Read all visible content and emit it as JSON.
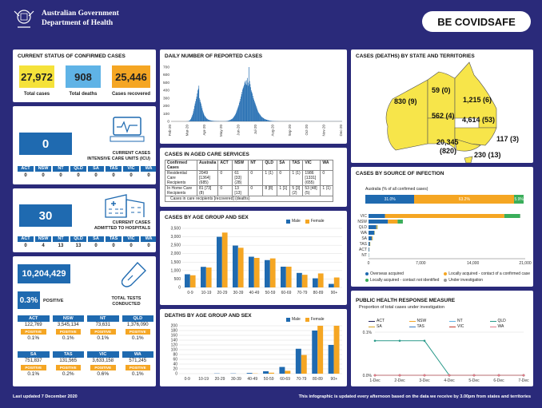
{
  "header": {
    "org_line1": "Australian Government",
    "org_line2": "Department of Health",
    "brand_be": "BE COVID",
    "brand_safe": "SAFE"
  },
  "status": {
    "title": "CURRENT STATUS OF CONFIRMED CASES",
    "total_cases": "27,972",
    "total_cases_label": "Total cases",
    "total_deaths": "908",
    "total_deaths_label": "Total deaths",
    "recovered": "25,446",
    "recovered_label": "Cases recovered"
  },
  "icu": {
    "value": "0",
    "label1": "CURRENT CASES",
    "label2": "INTENSIVE CARE UNITS (ICU)",
    "states": [
      "ACT",
      "NSW",
      "NT",
      "QLD",
      "SA",
      "TAS",
      "VIC",
      "WA"
    ],
    "values": [
      "0",
      "0",
      "0",
      "0",
      "0",
      "0",
      "0",
      "0"
    ]
  },
  "hospital": {
    "value": "30",
    "label1": "CURRENT CASES",
    "label2": "ADMITTED TO HOSPITALS",
    "states": [
      "ACT",
      "NSW",
      "NT",
      "QLD",
      "SA",
      "TAS",
      "VIC",
      "WA"
    ],
    "values": [
      "0",
      "4",
      "13",
      "13",
      "0",
      "0",
      "0",
      "0"
    ]
  },
  "tests": {
    "value": "10,204,429",
    "positive_rate": "0.3%",
    "positive_label": "POSITIVE",
    "label1": "TOTAL TESTS",
    "label2": "CONDUCTED",
    "positive_tag": "POSITIVE",
    "rows": [
      {
        "states": [
          "ACT",
          "NSW",
          "NT",
          "QLD"
        ],
        "values": [
          "122,769",
          "3,545,134",
          "73,631",
          "1,376,090"
        ],
        "rates": [
          "0.1%",
          "0.1%",
          "0.1%",
          "0.1%"
        ]
      },
      {
        "states": [
          "SA",
          "TAS",
          "VIC",
          "WA"
        ],
        "values": [
          "751,837",
          "131,565",
          "3,633,158",
          "571,245"
        ],
        "rates": [
          "0.1%",
          "0.2%",
          "0.6%",
          "0.1%"
        ]
      }
    ]
  },
  "daily": {
    "title": "DAILY NUMBER OF REPORTED CASES",
    "yticks": [
      "700",
      "600",
      "500",
      "400",
      "300",
      "200",
      "100",
      "0"
    ],
    "xticks": [
      "Feb-20",
      "Mar-20",
      "Apr-20",
      "May-20",
      "Jun-20",
      "Jul-20",
      "Aug-20",
      "Sep-20",
      "Oct-20",
      "Nov-20",
      "Dec-20"
    ]
  },
  "aged": {
    "title": "CASES IN AGED CARE SERVICES",
    "headers": [
      "Confirmed Cases",
      "Australia",
      "ACT",
      "NSW",
      "NT",
      "QLD",
      "SA",
      "TAS",
      "VIC",
      "WA"
    ],
    "rows": [
      {
        "label": "Residential Care Recipients",
        "cells": [
          "2049 [1364] (685)",
          "0",
          "61 [33] (28)",
          "0",
          "1 (1)",
          "0",
          "1 (1)",
          "1986 [1331] (655)",
          "0"
        ]
      },
      {
        "label": "In Home Care Recipients",
        "cells": [
          "81 [73] (8)",
          "0",
          "13 [13]",
          "0",
          "8 [8]",
          "1 [1]",
          "5 [3] (2)",
          "53 [48] (5)",
          "1 (1)"
        ]
      }
    ],
    "note": "Cases in care recipients [recovered] (deaths)"
  },
  "age_cases": {
    "title": "CASES BY AGE GROUP AND SEX",
    "legend_male": "Male",
    "legend_female": "Female"
  },
  "age_deaths": {
    "title": "DEATHS BY AGE GROUP AND SEX",
    "legend_male": "Male",
    "legend_female": "Female"
  },
  "map": {
    "title": "CASES (DEATHS) BY STATE AND TERRITORIES",
    "wa": "830 (9)",
    "nt": "59 (0)",
    "qld": "1,215 (6)",
    "sa": "562 (4)",
    "nsw": "4,614 (53)",
    "act": "117 (3)",
    "vic1": "20,345",
    "vic2": "(820)",
    "tas": "230 (13)"
  },
  "source": {
    "title": "CASES BY SOURCE OF INFECTION",
    "subtitle": "Australia (% of all confirmed cases)",
    "pct1": "31.0%",
    "pct2": "63.2%",
    "pct3": "5.9%",
    "xticks": [
      "0",
      "7,000",
      "14,000",
      "21,000"
    ],
    "legend": [
      "Overseas acquired",
      "Locally acquired - contact of a confirmed case",
      "Locally acquired - contact not identified",
      "Under investigation"
    ]
  },
  "response": {
    "title": "PUBLIC HEALTH RESPONSE MEASURE",
    "subtitle": "Proportion of total cases under investigation",
    "legend": [
      "ACT",
      "NSW",
      "NT",
      "QLD",
      "SA",
      "TAS",
      "VIC",
      "WA"
    ],
    "y_top": "0.1%",
    "y_bottom": "0.0%",
    "xticks": [
      "1-Dec",
      "2-Dec",
      "3-Dec",
      "4-Dec",
      "5-Dec",
      "6-Dec",
      "7-Dec"
    ]
  },
  "footer": {
    "updated": "Last updated 7 December 2020",
    "note": "This infographic is updated every afternoon based on the data we receive by 3.00pm from states and territories"
  },
  "colors": {
    "navy": "#2a2a7a",
    "blue": "#1f6ab0",
    "yellow": "#f5e23a",
    "orange": "#f5a623",
    "green": "#3aae5a",
    "teal": "#2a9a8a",
    "male": "#1f6ab0",
    "female": "#f5a623",
    "mapfill": "#f7e54a"
  },
  "chart_data": [
    {
      "type": "bar",
      "title": "CASES BY AGE GROUP AND SEX",
      "categories": [
        "0-9",
        "10-19",
        "20-29",
        "30-39",
        "40-49",
        "50-59",
        "60-69",
        "70-79",
        "80-89",
        "90+"
      ],
      "series": [
        {
          "name": "Male",
          "values": [
            780,
            1220,
            3000,
            2480,
            1820,
            1620,
            1230,
            860,
            540,
            210
          ]
        },
        {
          "name": "Female",
          "values": [
            720,
            1180,
            3250,
            2350,
            1750,
            1720,
            1230,
            750,
            830,
            590
          ]
        }
      ],
      "ylim": [
        0,
        3500
      ],
      "yticks": [
        "0",
        "500",
        "1,000",
        "1,500",
        "2,000",
        "2,500",
        "3,000",
        "3,500"
      ]
    },
    {
      "type": "bar",
      "title": "DEATHS BY AGE GROUP AND SEX",
      "categories": [
        "0-9",
        "10-19",
        "20-29",
        "30-39",
        "40-49",
        "50-59",
        "60-69",
        "70-79",
        "80-89",
        "90+"
      ],
      "series": [
        {
          "name": "Male",
          "values": [
            0,
            0,
            1,
            1,
            3,
            10,
            28,
            104,
            180,
            120
          ]
        },
        {
          "name": "Female",
          "values": [
            0,
            0,
            0,
            0,
            1,
            4,
            12,
            78,
            200,
            200
          ]
        }
      ],
      "ylim": [
        0,
        200
      ],
      "yticks": [
        "0",
        "20",
        "40",
        "60",
        "80",
        "100",
        "120",
        "140",
        "160",
        "180",
        "200"
      ]
    },
    {
      "type": "bar",
      "title": "CASES BY SOURCE OF INFECTION",
      "categories": [
        "VIC",
        "NSW",
        "QLD",
        "WA",
        "SA",
        "TAS",
        "ACT",
        "NT"
      ],
      "series": [
        {
          "name": "Overseas acquired",
          "values": [
            2200,
            2600,
            1050,
            780,
            450,
            160,
            90,
            40
          ]
        },
        {
          "name": "Locally acquired - contact of a confirmed case",
          "values": [
            16000,
            1300,
            110,
            30,
            90,
            60,
            20,
            10
          ]
        },
        {
          "name": "Locally acquired - contact not identified",
          "values": [
            2100,
            700,
            50,
            20,
            20,
            10,
            5,
            5
          ]
        },
        {
          "name": "Under investigation",
          "values": [
            40,
            10,
            5,
            0,
            0,
            0,
            0,
            0
          ]
        }
      ],
      "xlim": [
        0,
        21000
      ]
    },
    {
      "type": "line",
      "title": "PUBLIC HEALTH RESPONSE MEASURE",
      "x": [
        "1-Dec",
        "2-Dec",
        "3-Dec",
        "4-Dec",
        "5-Dec",
        "6-Dec",
        "7-Dec"
      ],
      "series": [
        {
          "name": "ACT",
          "values": [
            0,
            0,
            0,
            0,
            0,
            0,
            0
          ]
        },
        {
          "name": "NSW",
          "values": [
            0,
            0,
            0,
            0,
            0,
            0,
            0
          ]
        },
        {
          "name": "NT",
          "values": [
            0,
            0,
            0,
            0,
            0,
            0,
            0
          ]
        },
        {
          "name": "QLD",
          "values": [
            0.08,
            0.08,
            0.08,
            0,
            0,
            0,
            0
          ]
        },
        {
          "name": "SA",
          "values": [
            0,
            0,
            0,
            0,
            0,
            0,
            0
          ]
        },
        {
          "name": "TAS",
          "values": [
            0,
            0,
            0,
            0,
            0,
            0,
            0
          ]
        },
        {
          "name": "VIC",
          "values": [
            0,
            0,
            0,
            0,
            0,
            0,
            0
          ]
        },
        {
          "name": "WA",
          "values": [
            0,
            0,
            0,
            0,
            0,
            0,
            0
          ]
        }
      ],
      "ylim": [
        0,
        0.1
      ]
    },
    {
      "type": "bar",
      "title": "DAILY NUMBER OF REPORTED CASES",
      "xticks": [
        "Feb-20",
        "Mar-20",
        "Apr-20",
        "May-20",
        "Jun-20",
        "Jul-20",
        "Aug-20",
        "Sep-20",
        "Oct-20",
        "Nov-20",
        "Dec-20"
      ],
      "ylim": [
        0,
        700
      ],
      "values": [
        0,
        0,
        0,
        0,
        0,
        0,
        0,
        0,
        0,
        0,
        0,
        0,
        0,
        0,
        0,
        0,
        0,
        0,
        0,
        0,
        0,
        0,
        0,
        0,
        0,
        0,
        0,
        0,
        1,
        1,
        2,
        3,
        5,
        8,
        12,
        20,
        30,
        45,
        60,
        80,
        100,
        130,
        160,
        200,
        230,
        260,
        290,
        320,
        360,
        400,
        420,
        460,
        300,
        280,
        250,
        230,
        200,
        170,
        140,
        120,
        100,
        80,
        70,
        60,
        50,
        40,
        35,
        30,
        25,
        20,
        18,
        16,
        14,
        12,
        10,
        9,
        8,
        7,
        6,
        6,
        5,
        5,
        4,
        4,
        4,
        3,
        3,
        3,
        3,
        2,
        2,
        2,
        2,
        2,
        2,
        2,
        2,
        2,
        2,
        2,
        3,
        3,
        4,
        5,
        6,
        8,
        10,
        12,
        15,
        18,
        22,
        26,
        30,
        35,
        40,
        50,
        60,
        70,
        80,
        95,
        110,
        130,
        150,
        170,
        190,
        210,
        240,
        260,
        290,
        320,
        350,
        380,
        410,
        430,
        450,
        470,
        500,
        520,
        480,
        530,
        470,
        560,
        500,
        460,
        700,
        520,
        480,
        440,
        400,
        380,
        360,
        330,
        300,
        280,
        260,
        240,
        220,
        200,
        180,
        160,
        140,
        120,
        110,
        100,
        90,
        80,
        70,
        60,
        55,
        50,
        45,
        40,
        35,
        30,
        28,
        25,
        22,
        20,
        18,
        16,
        14,
        12,
        10,
        9,
        8,
        7,
        6,
        5,
        5,
        4,
        4,
        3,
        3,
        3,
        2,
        2,
        2,
        2,
        2,
        1,
        1,
        1,
        1,
        1,
        1,
        1,
        1,
        1,
        1,
        1,
        1,
        1,
        1,
        1,
        1,
        1,
        1,
        1,
        1,
        1,
        1,
        1,
        1,
        1,
        1,
        1,
        1,
        1,
        1,
        1,
        1,
        1,
        1,
        1,
        1,
        1,
        1,
        1,
        1,
        1,
        1,
        1,
        1,
        1,
        1,
        1,
        1,
        1,
        1,
        1,
        1,
        1,
        1,
        1,
        1,
        1,
        1,
        1,
        1,
        1,
        1,
        1,
        1,
        1,
        1,
        1,
        1,
        1,
        1,
        1,
        1,
        1,
        1,
        1,
        1,
        1,
        1,
        1,
        1,
        1,
        1,
        1,
        1,
        1,
        1,
        1,
        1,
        1,
        1,
        1,
        1,
        1,
        1,
        1,
        1,
        1,
        1,
        1,
        1,
        1,
        1,
        1,
        1,
        1,
        1,
        1,
        1,
        1,
        1,
        1,
        1,
        1,
        1,
        1,
        1,
        1,
        1
      ]
    }
  ]
}
